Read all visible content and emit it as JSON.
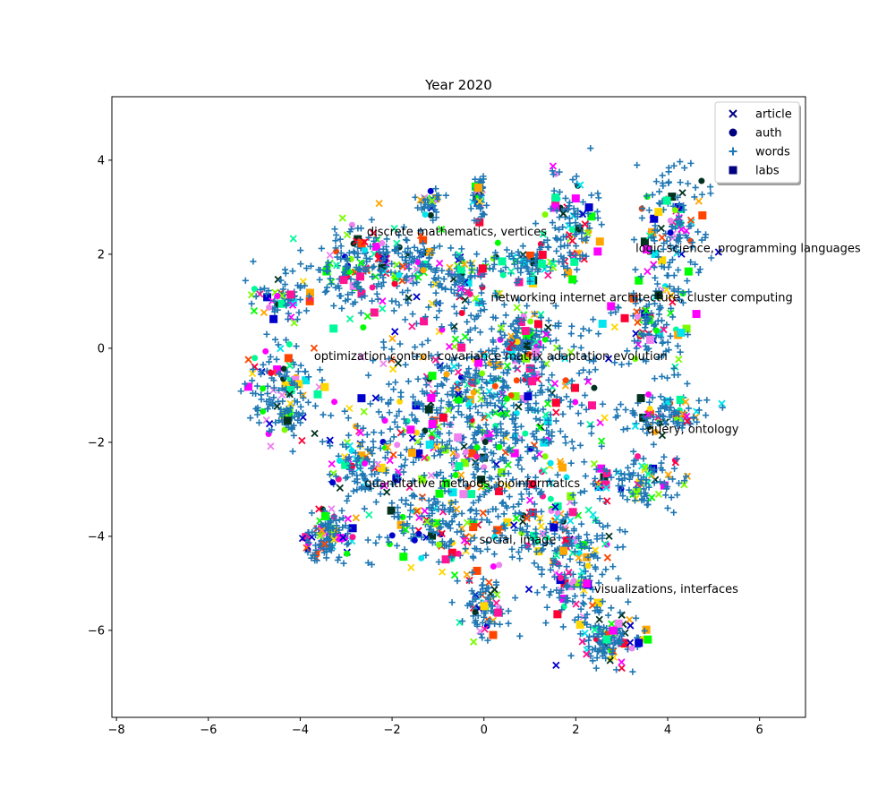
{
  "chart_data": {
    "type": "scatter",
    "title": "Year 2020",
    "xlabel": "",
    "ylabel": "",
    "xlim": [
      -8.1,
      7.0
    ],
    "ylim": [
      -7.85,
      5.35
    ],
    "xticks": [
      -8,
      -6,
      -4,
      -2,
      0,
      2,
      4,
      6
    ],
    "yticks": [
      -6,
      -4,
      -2,
      0,
      2,
      4
    ],
    "xtick_labels": [
      "−8",
      "−6",
      "−4",
      "−2",
      "0",
      "2",
      "4",
      "6"
    ],
    "ytick_labels": [
      "−6",
      "−4",
      "−2",
      "0",
      "2",
      "4"
    ],
    "grid": false,
    "legend_position": "top-right",
    "legend": [
      {
        "label": "article",
        "marker": "x",
        "color": "#000080"
      },
      {
        "label": "auth",
        "marker": "circle",
        "color": "#000080"
      },
      {
        "label": "words",
        "marker": "plus",
        "color": "#1f77b4"
      },
      {
        "label": "labs",
        "marker": "square",
        "color": "#000080"
      }
    ],
    "annotations": [
      {
        "text": "discrete mathematics, vertices",
        "x": -2.55,
        "y": 2.4
      },
      {
        "text": "logic science, programming languages",
        "x": 3.3,
        "y": 2.05
      },
      {
        "text": "networking internet architecture, cluster computing",
        "x": 0.15,
        "y": 1.0
      },
      {
        "text": "optimization control, covariance matrix adaptation evolution",
        "x": -3.7,
        "y": -0.25
      },
      {
        "text": "query, ontology",
        "x": 3.55,
        "y": -1.8
      },
      {
        "text": "quantitative methods, bioinformatics",
        "x": -2.6,
        "y": -2.95
      },
      {
        "text": "social, image",
        "x": -0.1,
        "y": -4.15
      },
      {
        "text": "visualizations, interfaces",
        "x": 2.4,
        "y": -5.2
      }
    ],
    "clusters": [
      {
        "x": 0.0,
        "y": -1.5,
        "sx": 1.3,
        "sy": 1.3,
        "n": 650
      },
      {
        "x": -4.4,
        "y": -1.0,
        "sx": 0.35,
        "sy": 0.45,
        "n": 110
      },
      {
        "x": -3.4,
        "y": -4.0,
        "sx": 0.3,
        "sy": 0.3,
        "n": 90
      },
      {
        "x": -2.8,
        "y": 1.7,
        "sx": 0.45,
        "sy": 0.45,
        "n": 120
      },
      {
        "x": -1.7,
        "y": 1.8,
        "sx": 0.4,
        "sy": 0.3,
        "n": 70
      },
      {
        "x": -1.2,
        "y": 3.1,
        "sx": 0.15,
        "sy": 0.15,
        "n": 25
      },
      {
        "x": -0.5,
        "y": 1.5,
        "sx": 0.3,
        "sy": 0.3,
        "n": 60
      },
      {
        "x": -0.1,
        "y": 3.2,
        "sx": 0.1,
        "sy": 0.3,
        "n": 35
      },
      {
        "x": 1.0,
        "y": 1.8,
        "sx": 0.4,
        "sy": 0.2,
        "n": 55
      },
      {
        "x": 1.9,
        "y": 2.6,
        "sx": 0.3,
        "sy": 0.5,
        "n": 80
      },
      {
        "x": 4.0,
        "y": 2.3,
        "sx": 0.4,
        "sy": 0.9,
        "n": 120
      },
      {
        "x": 3.6,
        "y": 0.4,
        "sx": 0.3,
        "sy": 0.4,
        "n": 60
      },
      {
        "x": 4.0,
        "y": -1.4,
        "sx": 0.5,
        "sy": 0.2,
        "n": 70
      },
      {
        "x": 3.4,
        "y": -2.8,
        "sx": 0.5,
        "sy": 0.3,
        "n": 70
      },
      {
        "x": 1.7,
        "y": -4.0,
        "sx": 0.6,
        "sy": 0.4,
        "n": 100
      },
      {
        "x": 2.7,
        "y": -6.2,
        "sx": 0.35,
        "sy": 0.3,
        "n": 90
      },
      {
        "x": 2.0,
        "y": -5.0,
        "sx": 0.4,
        "sy": 0.4,
        "n": 60
      },
      {
        "x": 0.1,
        "y": -5.5,
        "sx": 0.25,
        "sy": 0.3,
        "n": 60
      },
      {
        "x": -1.2,
        "y": -3.8,
        "sx": 0.5,
        "sy": 0.3,
        "n": 80
      },
      {
        "x": -2.7,
        "y": -2.6,
        "sx": 0.35,
        "sy": 0.4,
        "n": 70
      },
      {
        "x": 0.8,
        "y": 0.2,
        "sx": 0.3,
        "sy": 0.3,
        "n": 60
      },
      {
        "x": -4.3,
        "y": 1.0,
        "sx": 0.35,
        "sy": 0.3,
        "n": 50
      }
    ],
    "marker_colors": [
      "#ff1493",
      "#00ff00",
      "#ffd700",
      "#ff00ff",
      "#00e5ee",
      "#ff4500",
      "#7cfc00",
      "#ee82ee",
      "#0000cd",
      "#013220",
      "#ffa500",
      "#00fa9a",
      "#ff0033"
    ]
  }
}
